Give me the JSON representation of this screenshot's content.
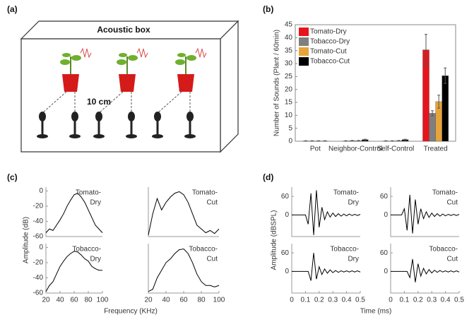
{
  "panel_a": {
    "label": "(a)",
    "title": "Acoustic box",
    "distance": "10 cm"
  },
  "panel_b": {
    "label": "(b)"
  },
  "panel_c": {
    "label": "(c)",
    "ylabel": "Amplitude (dB)",
    "xlabel": "Frequency (KHz)"
  },
  "panel_d": {
    "label": "(d)",
    "ylabel": "Amplitude (dBSPL)",
    "xlabel": "Time (ms)"
  },
  "chart_data": [
    {
      "type": "bar",
      "ylabel": "Number of Sounds (Plant / 60min)",
      "categories": [
        "Pot",
        "Neighbor-Control",
        "Self-Control",
        "Treated"
      ],
      "series": [
        {
          "name": "Tomato-Dry",
          "color": "#e8141c",
          "values": [
            0.1,
            0.1,
            0.1,
            35.3
          ],
          "errors": [
            0.1,
            0.1,
            0.1,
            6
          ]
        },
        {
          "name": "Tobacco-Dry",
          "color": "#7f7f7f",
          "values": [
            0.1,
            0.2,
            0.1,
            10.8
          ],
          "errors": [
            0.1,
            0.1,
            0.1,
            1
          ]
        },
        {
          "name": "Tomato-Cut",
          "color": "#e8a33a",
          "values": [
            0.1,
            0.2,
            0.2,
            15.3
          ],
          "errors": [
            0.1,
            0.1,
            0.1,
            2.5
          ]
        },
        {
          "name": "Tobacco-Cut",
          "color": "#000000",
          "values": [
            0.1,
            0.6,
            0.6,
            25.3
          ],
          "errors": [
            0.1,
            0.2,
            0.2,
            3
          ]
        }
      ],
      "ylim": [
        0,
        45
      ],
      "yticks": [
        0,
        5,
        10,
        15,
        20,
        25,
        30,
        35,
        40,
        45
      ],
      "legend": "upper-left"
    },
    {
      "type": "line",
      "label": [
        "Tomato-",
        "Dry"
      ],
      "color": "#000000",
      "x": [
        20,
        25,
        30,
        35,
        40,
        45,
        50,
        55,
        60,
        65,
        70,
        75,
        80,
        85,
        90,
        95,
        100
      ],
      "values": [
        -55,
        -50,
        -52,
        -45,
        -38,
        -30,
        -20,
        -12,
        -5,
        -3,
        -8,
        -15,
        -25,
        -35,
        -45,
        -50,
        -55
      ],
      "xlim": [
        20,
        100
      ],
      "ylim": [
        -60,
        5
      ],
      "yticks": [
        0,
        -20,
        -40,
        -60
      ]
    },
    {
      "type": "line",
      "label": [
        "Tomato-",
        "Cut"
      ],
      "color": "#000000",
      "x": [
        20,
        25,
        30,
        35,
        40,
        45,
        50,
        55,
        60,
        65,
        70,
        75,
        80,
        85,
        90,
        95,
        100
      ],
      "values": [
        -58,
        -30,
        -10,
        -25,
        -15,
        -8,
        -3,
        -1,
        -5,
        -15,
        -30,
        -45,
        -50,
        -55,
        -52,
        -56,
        -50
      ],
      "xlim": [
        20,
        100
      ],
      "ylim": [
        -60,
        5
      ]
    },
    {
      "type": "line",
      "label": [
        "Tobacco-",
        "Dry"
      ],
      "color": "#000000",
      "x": [
        20,
        25,
        30,
        35,
        40,
        45,
        50,
        55,
        60,
        65,
        70,
        75,
        80,
        85,
        90,
        95,
        100
      ],
      "values": [
        -58,
        -50,
        -45,
        -35,
        -25,
        -18,
        -12,
        -8,
        -5,
        -6,
        -10,
        -15,
        -18,
        -25,
        -28,
        -30,
        -30
      ],
      "xlim": [
        20,
        100
      ],
      "ylim": [
        -60,
        5
      ],
      "yticks": [
        0,
        -20,
        -40,
        -60
      ],
      "xticks": [
        20,
        40,
        60,
        80,
        100
      ]
    },
    {
      "type": "line",
      "label": [
        "Tobacco-",
        "Cut"
      ],
      "color": "#000000",
      "x": [
        20,
        25,
        30,
        35,
        40,
        45,
        50,
        55,
        60,
        65,
        70,
        75,
        80,
        85,
        90,
        95,
        100
      ],
      "values": [
        -58,
        -55,
        -40,
        -30,
        -20,
        -15,
        -8,
        -3,
        -2,
        -8,
        -20,
        -35,
        -45,
        -50,
        -50,
        -52,
        -50
      ],
      "xlim": [
        20,
        100
      ],
      "ylim": [
        -60,
        5
      ],
      "xticks": [
        20,
        40,
        60,
        80,
        100
      ]
    },
    {
      "type": "line",
      "label": [
        "Tomato-",
        "Dry"
      ],
      "color": "#000000",
      "x": [
        0,
        0.02,
        0.04,
        0.06,
        0.08,
        0.1,
        0.12,
        0.14,
        0.16,
        0.18,
        0.2,
        0.22,
        0.24,
        0.26,
        0.28,
        0.3,
        0.32,
        0.34,
        0.36,
        0.38,
        0.4,
        0.42,
        0.44,
        0.46,
        0.48,
        0.5
      ],
      "values": [
        0,
        0,
        0,
        0,
        0,
        0,
        -30,
        70,
        -65,
        80,
        -40,
        25,
        -15,
        10,
        -7,
        6,
        -5,
        4,
        -4,
        3,
        -3,
        3,
        -2,
        2,
        -2,
        2
      ],
      "xlim": [
        0,
        0.5
      ],
      "ylim": [
        -70,
        90
      ],
      "yticks": [
        0,
        60
      ]
    },
    {
      "type": "line",
      "label": [
        "Tomato-",
        "Cut"
      ],
      "color": "#000000",
      "x": [
        0,
        0.02,
        0.04,
        0.06,
        0.08,
        0.1,
        0.12,
        0.14,
        0.16,
        0.18,
        0.2,
        0.22,
        0.24,
        0.26,
        0.28,
        0.3,
        0.32,
        0.34,
        0.36,
        0.38,
        0.4,
        0.42,
        0.44,
        0.46,
        0.48,
        0.5
      ],
      "values": [
        0,
        0,
        0,
        0,
        0,
        20,
        -50,
        65,
        -60,
        50,
        -30,
        20,
        -12,
        10,
        -8,
        6,
        -5,
        4,
        -4,
        3,
        -3,
        2,
        -2,
        2,
        -2,
        2
      ],
      "xlim": [
        0,
        0.5
      ],
      "ylim": [
        -70,
        90
      ],
      "yticks": [
        0,
        60
      ]
    },
    {
      "type": "line",
      "label": [
        "Tobacco-",
        "Dry"
      ],
      "color": "#000000",
      "x": [
        0,
        0.02,
        0.04,
        0.06,
        0.08,
        0.1,
        0.12,
        0.14,
        0.16,
        0.18,
        0.2,
        0.22,
        0.24,
        0.26,
        0.28,
        0.3,
        0.32,
        0.34,
        0.36,
        0.38,
        0.4,
        0.42,
        0.44,
        0.46,
        0.48,
        0.5
      ],
      "values": [
        0,
        0,
        0,
        0,
        0,
        0,
        0,
        -30,
        60,
        -25,
        15,
        -10,
        8,
        -6,
        5,
        -4,
        3,
        -3,
        2,
        -2,
        2,
        -2,
        2,
        -2,
        2,
        -2
      ],
      "xlim": [
        0,
        0.5
      ],
      "ylim": [
        -70,
        90
      ],
      "yticks": [
        0,
        60
      ],
      "xticks": [
        0,
        0.1,
        0.2,
        0.3,
        0.4,
        0.5
      ]
    },
    {
      "type": "line",
      "label": [
        "Tobacco-",
        "Cut"
      ],
      "color": "#000000",
      "x": [
        0,
        0.02,
        0.04,
        0.06,
        0.08,
        0.1,
        0.12,
        0.14,
        0.16,
        0.18,
        0.2,
        0.22,
        0.24,
        0.26,
        0.28,
        0.3,
        0.32,
        0.34,
        0.36,
        0.38,
        0.4,
        0.42,
        0.44,
        0.46,
        0.48,
        0.5
      ],
      "values": [
        0,
        0,
        0,
        0,
        0,
        0,
        0,
        -20,
        40,
        -35,
        25,
        -15,
        10,
        -8,
        6,
        -5,
        4,
        -3,
        3,
        -2,
        2,
        -2,
        2,
        -2,
        2,
        -2
      ],
      "xlim": [
        0,
        0.5
      ],
      "ylim": [
        -70,
        90
      ],
      "yticks": [
        0,
        60
      ],
      "xticks": [
        0,
        0.1,
        0.2,
        0.3,
        0.4,
        0.5
      ]
    }
  ]
}
